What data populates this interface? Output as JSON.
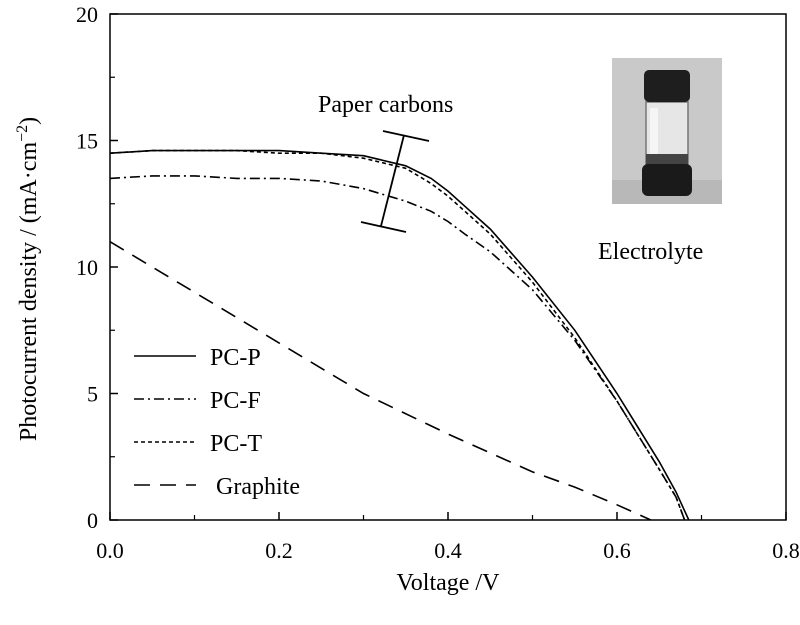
{
  "chart_data": {
    "type": "line",
    "xlabel": "Voltage /V",
    "ylabel": "Photocurrent density / (mA·cm⁻²)",
    "ylabel_parts": {
      "main": "Photocurrent density / (mA·cm",
      "sup": "−2",
      "close": ")"
    },
    "xlim": [
      0,
      0.8
    ],
    "ylim": [
      0,
      20
    ],
    "xticks": [
      "0.0",
      "0.2",
      "0.4",
      "0.6",
      "0.8"
    ],
    "yticks": [
      "0",
      "5",
      "10",
      "15",
      "20"
    ],
    "grid": false,
    "legend_position": "bottom-left",
    "annotations": {
      "paper_carbons": "Paper carbons",
      "electrolyte": "Electrolyte"
    },
    "series": [
      {
        "name": "PC-P",
        "style": "solid",
        "x": [
          0.0,
          0.05,
          0.1,
          0.15,
          0.2,
          0.25,
          0.3,
          0.35,
          0.38,
          0.4,
          0.42,
          0.45,
          0.5,
          0.55,
          0.6,
          0.65,
          0.67,
          0.685
        ],
        "y": [
          14.5,
          14.6,
          14.6,
          14.6,
          14.6,
          14.5,
          14.4,
          14.0,
          13.5,
          13.0,
          12.4,
          11.5,
          9.6,
          7.5,
          5.0,
          2.3,
          1.1,
          0.0
        ]
      },
      {
        "name": "PC-F",
        "style": "dashdot",
        "x": [
          0.0,
          0.05,
          0.1,
          0.15,
          0.2,
          0.25,
          0.3,
          0.35,
          0.38,
          0.4,
          0.42,
          0.45,
          0.5,
          0.55,
          0.6,
          0.65,
          0.67,
          0.68
        ],
        "y": [
          13.5,
          13.6,
          13.6,
          13.5,
          13.5,
          13.4,
          13.1,
          12.6,
          12.2,
          11.8,
          11.3,
          10.6,
          9.1,
          7.1,
          4.7,
          2.0,
          0.9,
          0.0
        ]
      },
      {
        "name": "PC-T",
        "style": "dotted",
        "x": [
          0.0,
          0.05,
          0.1,
          0.15,
          0.2,
          0.25,
          0.3,
          0.35,
          0.38,
          0.4,
          0.42,
          0.45,
          0.5,
          0.55,
          0.6,
          0.65,
          0.67,
          0.68
        ],
        "y": [
          14.5,
          14.6,
          14.6,
          14.6,
          14.5,
          14.5,
          14.3,
          13.9,
          13.3,
          12.8,
          12.2,
          11.3,
          9.4,
          7.2,
          4.7,
          2.0,
          0.9,
          0.0
        ]
      },
      {
        "name": "Graphite",
        "style": "dashed",
        "x": [
          0.0,
          0.1,
          0.2,
          0.3,
          0.4,
          0.5,
          0.55,
          0.6,
          0.62,
          0.64
        ],
        "y": [
          11.0,
          9.0,
          7.0,
          5.0,
          3.4,
          1.9,
          1.3,
          0.6,
          0.3,
          0.0
        ]
      }
    ]
  }
}
